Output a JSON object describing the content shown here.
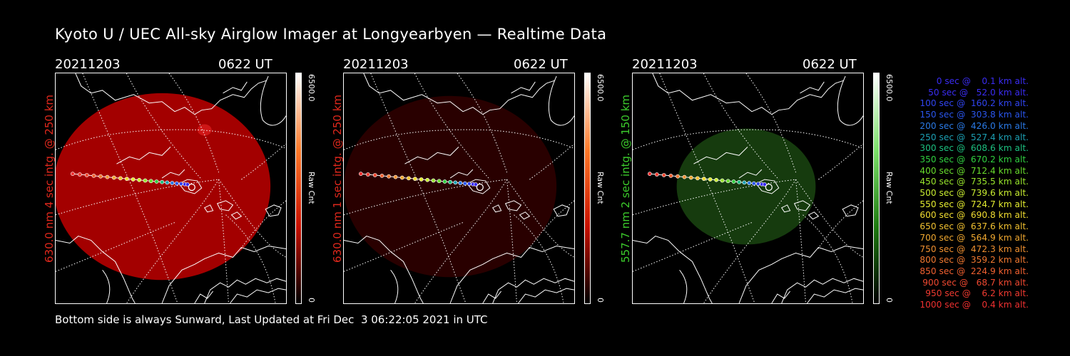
{
  "title": "Kyoto U / UEC All-sky Airglow Imager at Longyearbyen — Realtime Data",
  "footer": "Bottom side is always Sunward, Last Updated at Fri Dec  3 06:22:05 2021 in UTC",
  "panels": [
    {
      "date": "20211203",
      "time": "0622 UT",
      "ylabel": "630.0 nm 4 sec intg. @ 250 km",
      "color": "#e0281c",
      "glow": "#c00000",
      "glow_opacity": 0.85,
      "cbar_max": "6500.0",
      "cbar_min": "0",
      "cbar_unit": "Raw Cnt",
      "cbar_gradient": [
        "#ffffff",
        "#ff7a2a",
        "#c81000",
        "#000000"
      ]
    },
    {
      "date": "20211203",
      "time": "0622 UT",
      "ylabel": "630.0 nm 1 sec intg. @ 250 km",
      "color": "#e0281c",
      "glow": "#5a0000",
      "glow_opacity": 0.45,
      "cbar_max": "6500.0",
      "cbar_min": "0",
      "cbar_unit": "Raw Cnt",
      "cbar_gradient": [
        "#ffffff",
        "#ff7a2a",
        "#c81000",
        "#000000"
      ]
    },
    {
      "date": "20211203",
      "time": "0622 UT",
      "ylabel": "557.7 nm 2 sec intg. @ 150 km",
      "color": "#3ccc2c",
      "glow": "#1c4a12",
      "glow_opacity": 0.8,
      "cbar_max": "6500.0",
      "cbar_min": "0",
      "cbar_unit": "Raw Cnt",
      "cbar_gradient": [
        "#ffffff",
        "#7ce06a",
        "#1e7a10",
        "#000000"
      ]
    }
  ],
  "legend": [
    {
      "text": "0 sec @    0.1 km alt.",
      "color": "#3a2cf2"
    },
    {
      "text": "50 sec @   52.0 km alt.",
      "color": "#3a2cf2"
    },
    {
      "text": "100 sec @  160.2 km alt.",
      "color": "#3044f0"
    },
    {
      "text": "150 sec @  303.8 km alt.",
      "color": "#2a56ee"
    },
    {
      "text": "200 sec @  426.0 km alt.",
      "color": "#2a7ae6"
    },
    {
      "text": "250 sec @  527.4 km alt.",
      "color": "#1ca0b4"
    },
    {
      "text": "300 sec @  608.6 km alt.",
      "color": "#1cc080"
    },
    {
      "text": "350 sec @  670.2 km alt.",
      "color": "#30d040"
    },
    {
      "text": "400 sec @  712.4 km alt.",
      "color": "#68dc2c"
    },
    {
      "text": "450 sec @  735.5 km alt.",
      "color": "#98e42c"
    },
    {
      "text": "500 sec @  739.6 km alt.",
      "color": "#c8ec30"
    },
    {
      "text": "550 sec @  724.7 km alt.",
      "color": "#e4ec30"
    },
    {
      "text": "600 sec @  690.8 km alt.",
      "color": "#f0dc30"
    },
    {
      "text": "650 sec @  637.6 km alt.",
      "color": "#f0c030"
    },
    {
      "text": "700 sec @  564.9 km alt.",
      "color": "#f0a830"
    },
    {
      "text": "750 sec @  472.3 km alt.",
      "color": "#f09030"
    },
    {
      "text": "800 sec @  359.2 km alt.",
      "color": "#f07830"
    },
    {
      "text": "850 sec @  224.9 km alt.",
      "color": "#f06030"
    },
    {
      "text": "900 sec @   68.7 km alt.",
      "color": "#f04830"
    },
    {
      "text": "950 sec @    6.2 km alt.",
      "color": "#f03a30"
    },
    {
      "text": "1000 sec @    0.4 km alt.",
      "color": "#f03030"
    }
  ]
}
